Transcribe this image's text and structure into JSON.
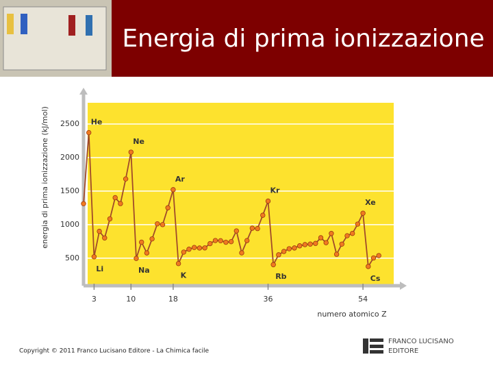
{
  "header": {
    "title": "Energia di prima ionizzazione"
  },
  "chart_data": {
    "type": "line",
    "y_label": "energia di prima ionizzazione (kJ/mol)",
    "x_label": "numero atomico Z",
    "x": [
      1,
      2,
      3,
      4,
      5,
      6,
      7,
      8,
      9,
      10,
      11,
      12,
      13,
      14,
      15,
      16,
      17,
      18,
      19,
      20,
      21,
      22,
      23,
      24,
      25,
      26,
      27,
      28,
      29,
      30,
      31,
      32,
      33,
      34,
      35,
      36,
      37,
      38,
      39,
      40,
      41,
      42,
      43,
      44,
      45,
      46,
      47,
      48,
      49,
      50,
      51,
      52,
      53,
      54,
      55,
      56,
      57
    ],
    "series": [
      {
        "line_color": "#a04a2a",
        "color": "#f07a20",
        "values": [
          1312,
          2372,
          520,
          900,
          801,
          1086,
          1402,
          1314,
          1681,
          2081,
          496,
          738,
          578,
          787,
          1012,
          1000,
          1251,
          1521,
          419,
          590,
          633,
          659,
          651,
          653,
          717,
          763,
          760,
          737,
          746,
          906,
          579,
          762,
          947,
          941,
          1140,
          1351,
          403,
          550,
          600,
          640,
          652,
          684,
          702,
          710,
          720,
          804,
          731,
          868,
          558,
          709,
          834,
          869,
          1008,
          1170,
          376,
          503,
          538
        ]
      }
    ],
    "annotations": [
      {
        "text": "He",
        "x": 2
      },
      {
        "text": "Ne",
        "x": 10
      },
      {
        "text": "Ar",
        "x": 18
      },
      {
        "text": "Kr",
        "x": 36
      },
      {
        "text": "Xe",
        "x": 54
      },
      {
        "text": "Li",
        "x": 3
      },
      {
        "text": "Na",
        "x": 11
      },
      {
        "text": "K",
        "x": 19
      },
      {
        "text": "Rb",
        "x": 37
      },
      {
        "text": "Cs",
        "x": 55
      }
    ],
    "xlim": [
      1,
      61
    ],
    "xticks": [
      3,
      10,
      18,
      36,
      54
    ],
    "ylim": [
      150,
      2950
    ],
    "yticks": [
      500,
      1000,
      1500,
      2000,
      2500
    ],
    "grid": true,
    "background": "#fde22e"
  },
  "footer": {
    "copyright": "Copyright © 2011 Franco Lucisano Editore - La Chimica facile",
    "logo_line1": "FRANCO LUCISANO",
    "logo_line2": "EDITORE"
  }
}
